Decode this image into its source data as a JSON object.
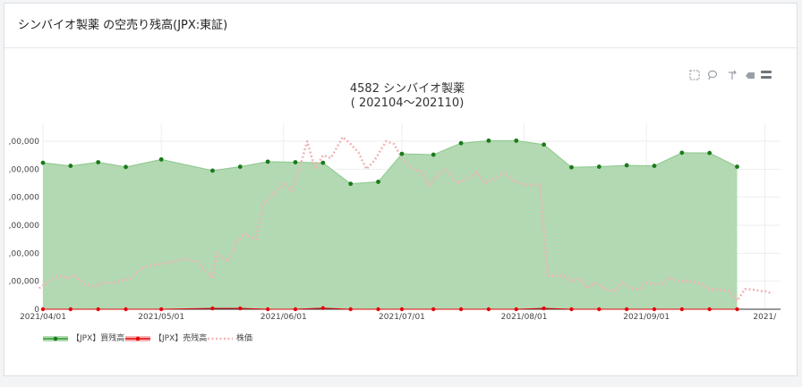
{
  "card": {
    "title": "シンバイオ製薬 の空売り残高(JPX:東証)"
  },
  "toolbar": {
    "icons": [
      "box-select-icon",
      "lasso-select-icon",
      "pan-icon",
      "zoom-out-icon",
      "menu-icon"
    ]
  },
  "chart_data": {
    "type": "line",
    "title": "4582 シンバイオ製薬",
    "subtitle": "( 202104～202110)",
    "xlabel": "",
    "ylabel": "",
    "x_tick_labels": [
      "2021/04/01",
      "2021/05/01",
      "2021/06/01",
      "2021/07/01",
      "2021/08/01",
      "2021/09/01",
      "2021/"
    ],
    "y_tick_labels": [
      ",00,000",
      ",00,000",
      ",00,000",
      ",00,000",
      ",00,000",
      ",00,000",
      "0"
    ],
    "ylim": [
      0,
      6
    ],
    "grid": true,
    "legend_position": "bottom-left",
    "colors": {
      "buy_fill": "#b2d9b2",
      "buy_line": "#2ca02c",
      "sell": "#e6050c",
      "price": "#f0b4b4"
    },
    "series": [
      {
        "name": "【JPX】買残高",
        "style": "area-with-markers",
        "points": [
          [
            "2021-04-01",
            5.23
          ],
          [
            "2021-04-08",
            5.12
          ],
          [
            "2021-04-15",
            5.25
          ],
          [
            "2021-04-22",
            5.08
          ],
          [
            "2021-05-01",
            5.35
          ],
          [
            "2021-05-14",
            4.95
          ],
          [
            "2021-05-21",
            5.09
          ],
          [
            "2021-05-28",
            5.27
          ],
          [
            "2021-06-04",
            5.25
          ],
          [
            "2021-06-11",
            5.23
          ],
          [
            "2021-06-18",
            4.48
          ],
          [
            "2021-06-25",
            4.55
          ],
          [
            "2021-07-01",
            5.55
          ],
          [
            "2021-07-09",
            5.52
          ],
          [
            "2021-07-16",
            5.93
          ],
          [
            "2021-07-23",
            6.02
          ],
          [
            "2021-07-30",
            6.02
          ],
          [
            "2021-08-06",
            5.88
          ],
          [
            "2021-08-13",
            5.07
          ],
          [
            "2021-08-20",
            5.09
          ],
          [
            "2021-08-27",
            5.14
          ],
          [
            "2021-09-03",
            5.12
          ],
          [
            "2021-09-10",
            5.59
          ],
          [
            "2021-09-17",
            5.58
          ],
          [
            "2021-09-24",
            5.09
          ]
        ]
      },
      {
        "name": "【JPX】売残高",
        "style": "line-with-markers",
        "points": [
          [
            "2021-04-01",
            0.0
          ],
          [
            "2021-04-08",
            0.0
          ],
          [
            "2021-04-15",
            0.0
          ],
          [
            "2021-04-22",
            0.0
          ],
          [
            "2021-05-01",
            0.0
          ],
          [
            "2021-05-14",
            0.03
          ],
          [
            "2021-05-21",
            0.03
          ],
          [
            "2021-05-28",
            0.0
          ],
          [
            "2021-06-04",
            0.0
          ],
          [
            "2021-06-11",
            0.04
          ],
          [
            "2021-06-18",
            0.0
          ],
          [
            "2021-06-25",
            0.0
          ],
          [
            "2021-07-01",
            0.0
          ],
          [
            "2021-07-09",
            0.0
          ],
          [
            "2021-07-16",
            0.0
          ],
          [
            "2021-07-23",
            0.0
          ],
          [
            "2021-07-30",
            0.0
          ],
          [
            "2021-08-06",
            0.03
          ],
          [
            "2021-08-13",
            0.0
          ],
          [
            "2021-08-20",
            0.0
          ],
          [
            "2021-08-27",
            0.0
          ],
          [
            "2021-09-03",
            0.0
          ],
          [
            "2021-09-10",
            0.0
          ],
          [
            "2021-09-17",
            0.0
          ],
          [
            "2021-09-24",
            0.0
          ]
        ]
      },
      {
        "name": "株価",
        "style": "dotted-line",
        "points": [
          [
            "2021-03-31",
            0.75
          ],
          [
            "2021-04-02",
            0.95
          ],
          [
            "2021-04-05",
            1.2
          ],
          [
            "2021-04-07",
            1.1
          ],
          [
            "2021-04-09",
            1.2
          ],
          [
            "2021-04-12",
            0.85
          ],
          [
            "2021-04-14",
            0.82
          ],
          [
            "2021-04-16",
            0.95
          ],
          [
            "2021-04-19",
            0.92
          ],
          [
            "2021-04-21",
            1.05
          ],
          [
            "2021-04-23",
            1.05
          ],
          [
            "2021-04-26",
            1.45
          ],
          [
            "2021-04-28",
            1.55
          ],
          [
            "2021-04-30",
            1.6
          ],
          [
            "2021-05-04",
            1.7
          ],
          [
            "2021-05-07",
            1.8
          ],
          [
            "2021-05-10",
            1.7
          ],
          [
            "2021-05-12",
            1.4
          ],
          [
            "2021-05-14",
            1.1
          ],
          [
            "2021-05-15",
            2.0
          ],
          [
            "2021-05-18",
            1.7
          ],
          [
            "2021-05-20",
            2.4
          ],
          [
            "2021-05-22",
            2.7
          ],
          [
            "2021-05-25",
            2.5
          ],
          [
            "2021-05-27",
            3.8
          ],
          [
            "2021-05-30",
            4.2
          ],
          [
            "2021-06-01",
            4.5
          ],
          [
            "2021-06-03",
            4.2
          ],
          [
            "2021-06-05",
            5.0
          ],
          [
            "2021-06-07",
            6.0
          ],
          [
            "2021-06-09",
            5.0
          ],
          [
            "2021-06-11",
            5.5
          ],
          [
            "2021-06-13",
            5.4
          ],
          [
            "2021-06-16",
            6.15
          ],
          [
            "2021-06-18",
            5.9
          ],
          [
            "2021-06-20",
            5.6
          ],
          [
            "2021-06-22",
            5.0
          ],
          [
            "2021-06-24",
            5.3
          ],
          [
            "2021-06-27",
            6.0
          ],
          [
            "2021-06-29",
            5.9
          ],
          [
            "2021-07-01",
            5.4
          ],
          [
            "2021-07-04",
            5.0
          ],
          [
            "2021-07-06",
            4.9
          ],
          [
            "2021-07-08",
            4.4
          ],
          [
            "2021-07-10",
            4.8
          ],
          [
            "2021-07-12",
            5.0
          ],
          [
            "2021-07-15",
            4.5
          ],
          [
            "2021-07-18",
            4.7
          ],
          [
            "2021-07-20",
            4.9
          ],
          [
            "2021-07-22",
            4.5
          ],
          [
            "2021-07-25",
            4.7
          ],
          [
            "2021-07-27",
            4.9
          ],
          [
            "2021-07-29",
            4.6
          ],
          [
            "2021-08-01",
            4.45
          ],
          [
            "2021-08-03",
            4.45
          ],
          [
            "2021-08-05",
            4.45
          ],
          [
            "2021-08-07",
            1.2
          ],
          [
            "2021-08-09",
            1.2
          ],
          [
            "2021-08-11",
            1.2
          ],
          [
            "2021-08-13",
            1.0
          ],
          [
            "2021-08-15",
            1.1
          ],
          [
            "2021-08-17",
            0.75
          ],
          [
            "2021-08-19",
            0.95
          ],
          [
            "2021-08-22",
            0.7
          ],
          [
            "2021-08-24",
            0.65
          ],
          [
            "2021-08-26",
            0.95
          ],
          [
            "2021-08-28",
            0.75
          ],
          [
            "2021-08-30",
            0.7
          ],
          [
            "2021-09-01",
            0.95
          ],
          [
            "2021-09-03",
            0.9
          ],
          [
            "2021-09-05",
            0.9
          ],
          [
            "2021-09-07",
            1.15
          ],
          [
            "2021-09-09",
            1.0
          ],
          [
            "2021-09-12",
            1.0
          ],
          [
            "2021-09-15",
            0.9
          ],
          [
            "2021-09-17",
            0.7
          ],
          [
            "2021-09-19",
            0.7
          ],
          [
            "2021-09-22",
            0.65
          ],
          [
            "2021-09-24",
            0.3
          ],
          [
            "2021-09-26",
            0.72
          ],
          [
            "2021-09-28",
            0.7
          ],
          [
            "2021-09-30",
            0.65
          ],
          [
            "2021-10-01",
            0.65
          ],
          [
            "2021-10-03",
            0.55
          ]
        ]
      }
    ]
  }
}
